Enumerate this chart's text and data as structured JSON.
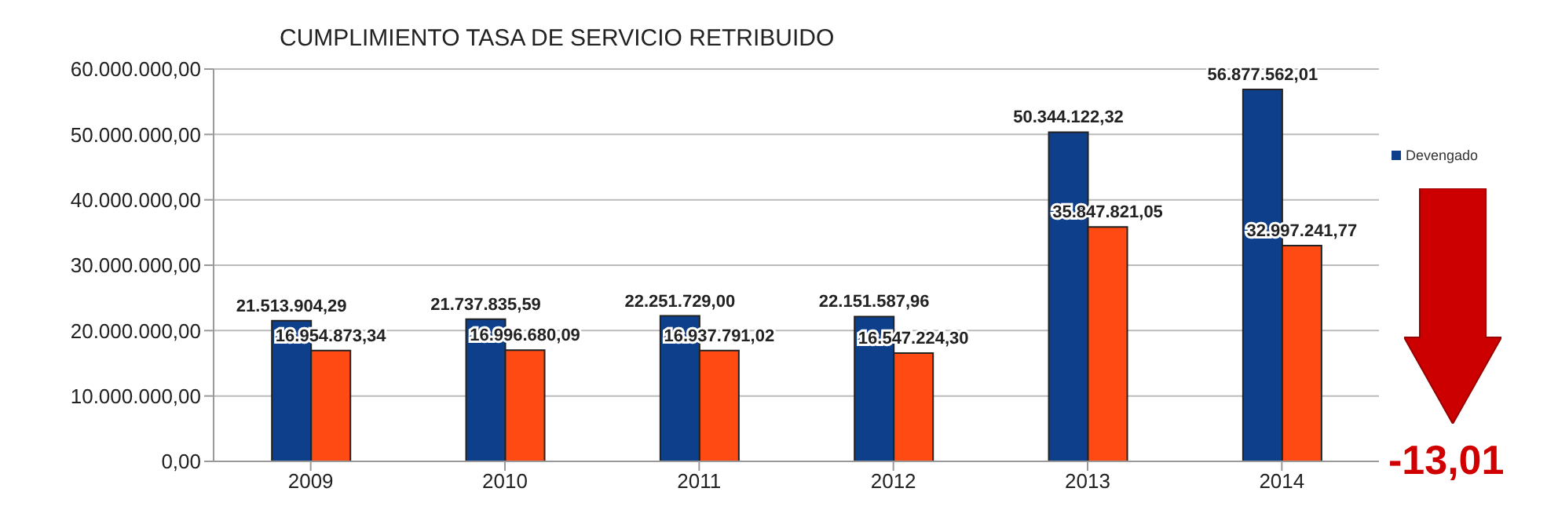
{
  "chart_data": {
    "type": "bar",
    "title": "CUMPLIMIENTO TASA DE SERVICIO RETRIBUIDO",
    "categories": [
      "2009",
      "2010",
      "2011",
      "2012",
      "2013",
      "2014"
    ],
    "series": [
      {
        "name": "Devengado",
        "color": "#0d3f8a",
        "values": [
          21513904.29,
          21737835.59,
          22251729.0,
          22151587.96,
          50344122.32,
          56877562.01
        ],
        "value_labels": [
          "21.513.904,29",
          "21.737.835,59",
          "22.251.729,00",
          "22.151.587,96",
          "50.344.122,32",
          "56.877.562,01"
        ]
      },
      {
        "color": "#ff4a14",
        "values": [
          16954873.34,
          16996680.09,
          16937791.02,
          16547224.3,
          35847821.05,
          32997241.77
        ],
        "value_labels": [
          "16.954.873,34",
          "16.996.680,09",
          "16.937.791,02",
          "16.547.224,30",
          "35.847.821,05",
          "32.997.241,77"
        ]
      }
    ],
    "ylim": [
      0,
      60000000
    ],
    "yticks": [
      {
        "value": 0,
        "label": "0,00"
      },
      {
        "value": 10000000,
        "label": "10.000.000,00"
      },
      {
        "value": 20000000,
        "label": "20.000.000,00"
      },
      {
        "value": 30000000,
        "label": "30.000.000,00"
      },
      {
        "value": 40000000,
        "label": "40.000.000,00"
      },
      {
        "value": 50000000,
        "label": "50.000.000,00"
      },
      {
        "value": 60000000,
        "label": "60.000.000,00"
      }
    ],
    "grid": "y",
    "legend": "right",
    "annotations": [
      "-13,01"
    ]
  }
}
